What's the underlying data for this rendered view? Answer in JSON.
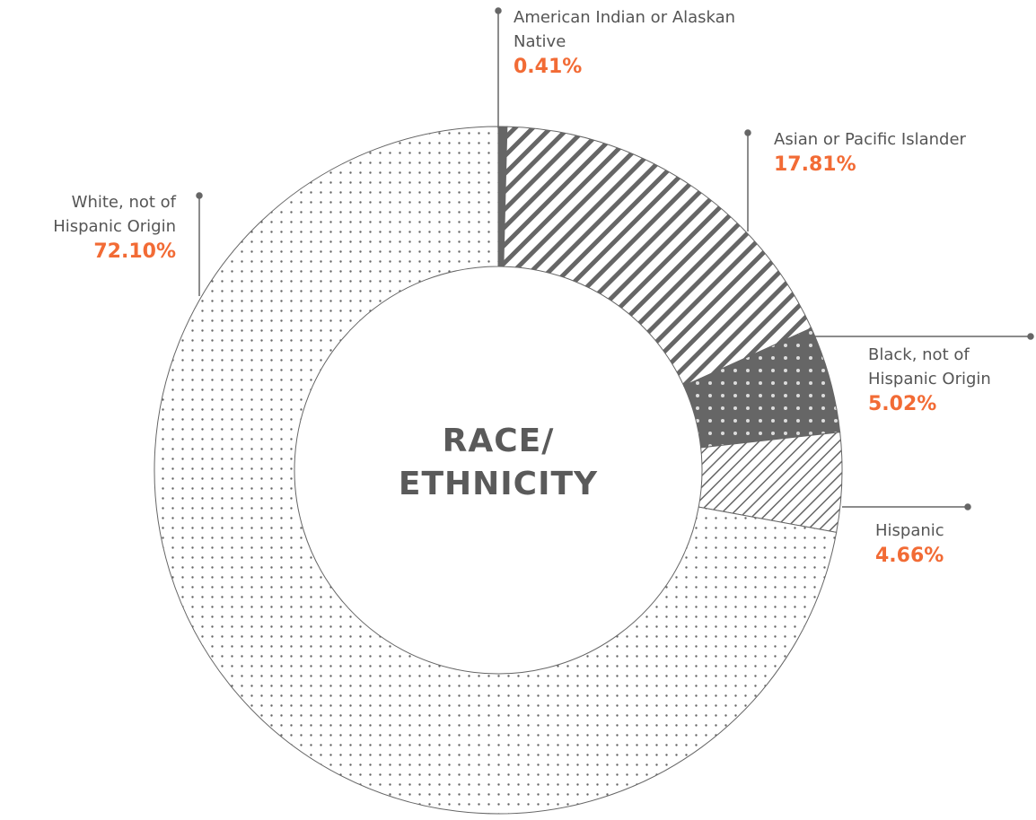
{
  "chart_data": {
    "type": "donut",
    "title": "RACE/ ETHNICITY",
    "categories": [
      "American Indian or Alaskan Native",
      "Asian or Pacific Islander",
      "Black, not of Hispanic Origin",
      "Hispanic",
      "White, not of Hispanic Origin"
    ],
    "values": [
      0.41,
      17.81,
      5.02,
      4.66,
      72.1
    ],
    "value_labels": [
      "0.41%",
      "17.81%",
      "5.02%",
      "4.66%",
      "72.10%"
    ],
    "color": "#666666",
    "label_color": "#f26b35"
  }
}
